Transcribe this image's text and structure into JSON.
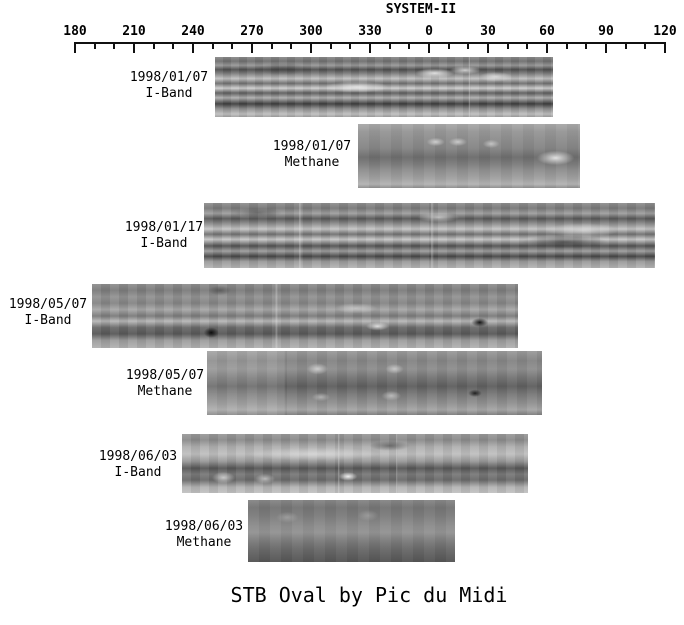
{
  "title": "SYSTEM-II",
  "ruler": {
    "tick_labels": [
      "180",
      "210",
      "240",
      "270",
      "300",
      "330",
      "0",
      "30",
      "60",
      "90",
      "120"
    ],
    "minor_ticks_per_interval": 2
  },
  "strips": [
    {
      "date": "1998/01/07",
      "filter": "I-Band"
    },
    {
      "date": "1998/01/07",
      "filter": "Methane"
    },
    {
      "date": "1998/01/17",
      "filter": "I-Band"
    },
    {
      "date": "1998/05/07",
      "filter": "I-Band"
    },
    {
      "date": "1998/05/07",
      "filter": "Methane"
    },
    {
      "date": "1998/06/03",
      "filter": "I-Band"
    },
    {
      "date": "1998/06/03",
      "filter": "Methane"
    }
  ],
  "caption": "STB Oval by Pic du Midi",
  "colors": {
    "ink": "#000000",
    "background": "#ffffff"
  }
}
